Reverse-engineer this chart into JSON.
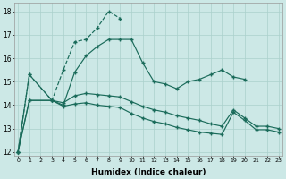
{
  "xlabel": "Humidex (Indice chaleur)",
  "bg_color": "#cce8e6",
  "grid_color": "#aad0cc",
  "line_color": "#1a6b5a",
  "line1_x": [
    0,
    1,
    3,
    4,
    5,
    6,
    7,
    8,
    9
  ],
  "line1_y": [
    12.0,
    15.3,
    14.2,
    15.5,
    16.7,
    16.8,
    17.3,
    18.0,
    17.7
  ],
  "line2_x": [
    0,
    1,
    3,
    4,
    5,
    6,
    7,
    8,
    9,
    10,
    11,
    12,
    13,
    14,
    15,
    16,
    17,
    18,
    19,
    20
  ],
  "line2_y": [
    12.0,
    15.3,
    14.2,
    14.0,
    15.4,
    16.1,
    16.5,
    16.8,
    16.8,
    16.8,
    15.8,
    15.0,
    14.9,
    14.7,
    15.0,
    15.1,
    15.3,
    15.5,
    15.2,
    15.1
  ],
  "line3_x": [
    0,
    1,
    3,
    4,
    5,
    6,
    7,
    8,
    9,
    10,
    11,
    12,
    13,
    14,
    15,
    16,
    17,
    18,
    19,
    20,
    21,
    22,
    23
  ],
  "line3_y": [
    12.0,
    14.2,
    14.2,
    14.1,
    14.4,
    14.5,
    14.45,
    14.4,
    14.35,
    14.15,
    13.95,
    13.8,
    13.7,
    13.55,
    13.45,
    13.35,
    13.2,
    13.1,
    13.8,
    13.45,
    13.1,
    13.1,
    13.0
  ],
  "line4_x": [
    0,
    1,
    3,
    4,
    5,
    6,
    7,
    8,
    9,
    10,
    11,
    12,
    13,
    14,
    15,
    16,
    17,
    18,
    19,
    20,
    21,
    22,
    23
  ],
  "line4_y": [
    12.0,
    14.2,
    14.2,
    13.95,
    14.05,
    14.1,
    14.0,
    13.95,
    13.9,
    13.65,
    13.45,
    13.3,
    13.2,
    13.05,
    12.95,
    12.85,
    12.8,
    12.75,
    13.7,
    13.35,
    12.95,
    12.95,
    12.85
  ],
  "yticks": [
    12,
    13,
    14,
    15,
    16,
    17,
    18
  ],
  "xticks": [
    0,
    1,
    2,
    3,
    4,
    5,
    6,
    7,
    8,
    9,
    10,
    11,
    12,
    13,
    14,
    15,
    16,
    17,
    18,
    19,
    20,
    21,
    22,
    23
  ],
  "ylim": [
    11.85,
    18.35
  ],
  "xlim": [
    -0.3,
    23.3
  ]
}
